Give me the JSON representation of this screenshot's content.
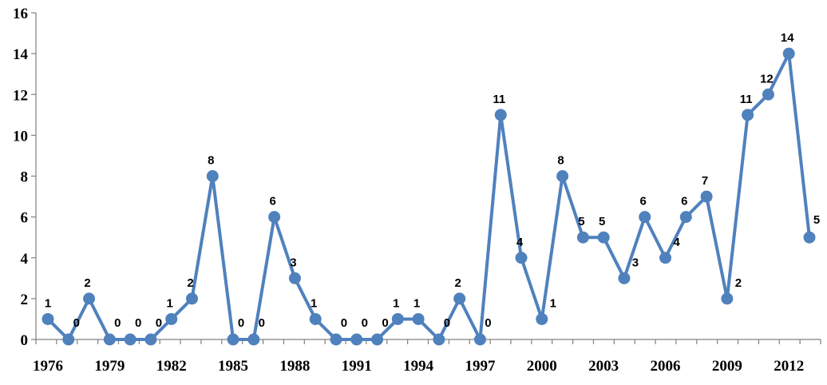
{
  "chart_data": {
    "type": "line",
    "title": "",
    "xlabel": "",
    "ylabel": "",
    "x": [
      1976,
      1977,
      1978,
      1979,
      1980,
      1981,
      1982,
      1983,
      1984,
      1985,
      1986,
      1987,
      1988,
      1989,
      1990,
      1991,
      1992,
      1993,
      1994,
      1995,
      1996,
      1997,
      1998,
      1999,
      2000,
      2001,
      2002,
      2003,
      2004,
      2005,
      2006,
      2007,
      2008,
      2009,
      2010,
      2011,
      2012,
      2013
    ],
    "x_ticks": [
      "1976",
      "1979",
      "1982",
      "1985",
      "1988",
      "1991",
      "1994",
      "1997",
      "2000",
      "2003",
      "2006",
      "2009",
      "2012"
    ],
    "y_ticks": [
      "0",
      "2",
      "4",
      "6",
      "8",
      "10",
      "12",
      "14",
      "16"
    ],
    "series": [
      {
        "values": [
          1,
          0,
          2,
          0,
          0,
          0,
          1,
          2,
          8,
          0,
          0,
          6,
          3,
          1,
          0,
          0,
          0,
          1,
          1,
          0,
          2,
          0,
          11,
          4,
          1,
          8,
          5,
          5,
          3,
          6,
          4,
          6,
          7,
          2,
          11,
          12,
          14,
          5
        ],
        "color": "#4f81bd"
      }
    ],
    "ylim": [
      0,
      16
    ],
    "grid": false,
    "legend": "none"
  }
}
